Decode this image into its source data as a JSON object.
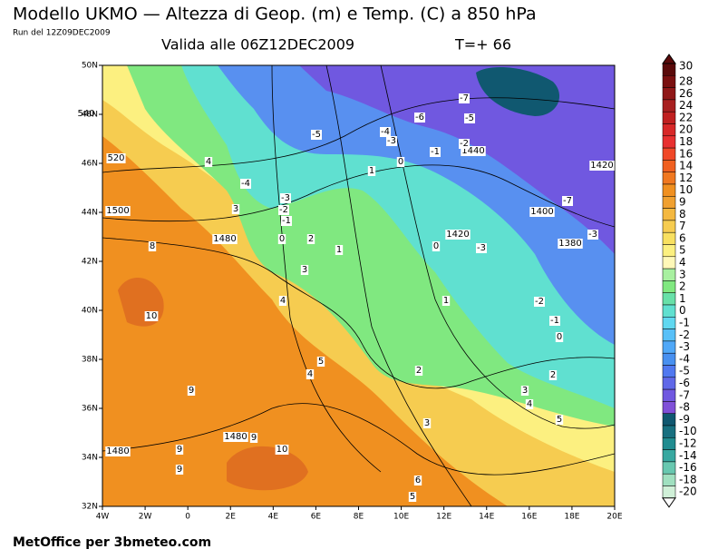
{
  "header": {
    "title": "Modello UKMO — Altezza di Geop. (m) e Temp. (C) a 850 hPa",
    "run": "Run del 12Z09DEC2009",
    "valid": "Valida alle 06Z12DEC2009",
    "step": "T=+ 66"
  },
  "axes": {
    "x_labels": [
      "4W",
      "2W",
      "0",
      "2E",
      "4E",
      "6E",
      "8E",
      "10E",
      "12E",
      "14E",
      "16E",
      "18E",
      "20E"
    ],
    "y_labels": [
      "50N",
      "48N",
      "46N",
      "44N",
      "42N",
      "40N",
      "38N",
      "36N",
      "34N",
      "32N"
    ]
  },
  "colorbar": {
    "labels": [
      "30",
      "28",
      "26",
      "24",
      "22",
      "20",
      "18",
      "16",
      "14",
      "12",
      "10",
      "9",
      "8",
      "7",
      "6",
      "5",
      "4",
      "3",
      "2",
      "1",
      "0",
      "-1",
      "-2",
      "-3",
      "-4",
      "-5",
      "-6",
      "-7",
      "-8",
      "-9",
      "-10",
      "-12",
      "-14",
      "-16",
      "-18",
      "-20"
    ],
    "colors": [
      "#5a0a0a",
      "#7a1010",
      "#901818",
      "#a82020",
      "#c02020",
      "#d82828",
      "#e83030",
      "#f04828",
      "#f06020",
      "#f07820",
      "#f09020",
      "#f0a030",
      "#f4b840",
      "#f6cc50",
      "#f8e060",
      "#fcf080",
      "#fff8b8",
      "#a8f0a0",
      "#80e880",
      "#68e0a8",
      "#60e0d0",
      "#60d8f0",
      "#58c0f8",
      "#50a8f8",
      "#4890f0",
      "#5078f0",
      "#6068e8",
      "#7058e0",
      "#8050d8",
      "#105870",
      "#187080",
      "#208c90",
      "#38a8a0",
      "#68c8b0",
      "#a0e0c0",
      "#d0f0d8"
    ]
  },
  "contour_labels": [
    "540",
    "520",
    "1500",
    "1480",
    "1480",
    "1480",
    "1420",
    "1440",
    "1400",
    "1380",
    "1420",
    "-7",
    "-6",
    "-5",
    "-5",
    "-4",
    "-3",
    "-2",
    "-1",
    "0",
    "1",
    "4",
    "-4",
    "3",
    "-3",
    "-2",
    "-1",
    "0",
    "2",
    "1",
    "0",
    "-3",
    "-7",
    "-3",
    "8",
    "3",
    "4",
    "10",
    "1",
    "-2",
    "-1",
    "0",
    "5",
    "4",
    "2",
    "2",
    "3",
    "4",
    "5",
    "3",
    "9",
    "9",
    "9",
    "10",
    "9",
    "6",
    "5"
  ],
  "footer": "MetOffice per 3bmeteo.com"
}
